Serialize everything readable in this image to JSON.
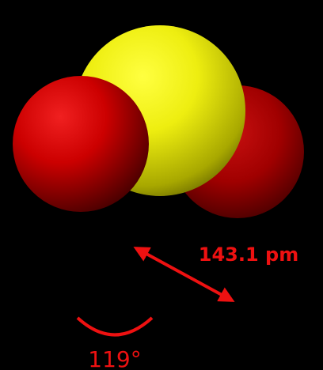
{
  "diagram": {
    "bond_length": "143.1 pm",
    "bond_angle": "119°"
  }
}
